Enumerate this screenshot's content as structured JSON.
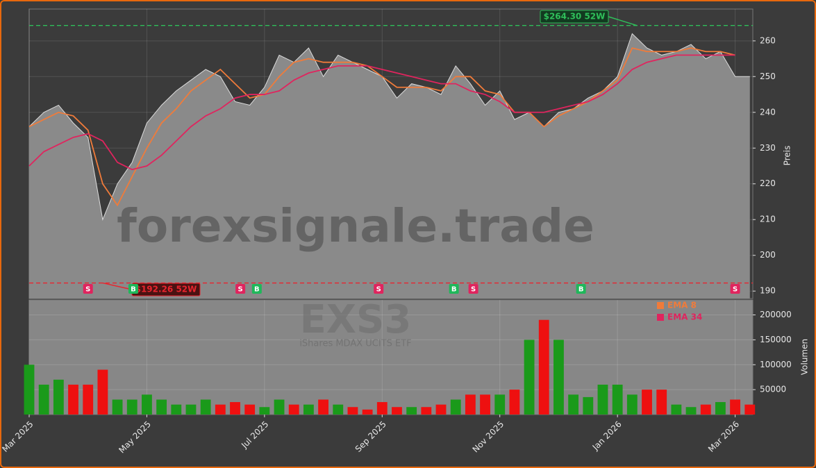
{
  "chart_data": [
    {
      "type": "line",
      "watermark": "forexsignale.trade",
      "symbol": "EXS3",
      "subtitle": "iShares MDAX UCITS ETF",
      "ylabel": "Preis",
      "x": [
        0,
        0.25,
        0.5,
        0.75,
        1,
        1.25,
        1.5,
        1.75,
        2,
        2.25,
        2.5,
        2.75,
        3,
        3.25,
        3.5,
        3.75,
        4,
        4.25,
        4.5,
        4.75,
        5,
        5.25,
        5.5,
        5.75,
        6,
        6.25,
        6.5,
        6.75,
        7,
        7.25,
        7.5,
        7.75,
        8,
        8.25,
        8.5,
        8.75,
        9,
        9.25,
        9.5,
        9.75,
        10,
        10.25,
        10.5,
        10.75,
        11,
        11.25,
        11.5,
        11.75,
        12,
        12.25
      ],
      "xlim": [
        0,
        12.3
      ],
      "ylim": [
        187.9,
        268.9
      ],
      "yticks": [
        190,
        200,
        210,
        220,
        230,
        240,
        250,
        260
      ],
      "grid": true,
      "area_color": "#8a8a8a",
      "series": [
        {
          "color": "#dddddd",
          "values": [
            236,
            240,
            242,
            237,
            233,
            210,
            220,
            226,
            237,
            242,
            246,
            249,
            252,
            250,
            243,
            242,
            247,
            256,
            254,
            258,
            250,
            256,
            254,
            252,
            250,
            244,
            248,
            247,
            245,
            253,
            248,
            242,
            246,
            238,
            240,
            236,
            240,
            241,
            244,
            246,
            250,
            262,
            258,
            256,
            257,
            259,
            255,
            257,
            250,
            250
          ]
        },
        {
          "name": "EMA 8",
          "color": "#f07b3a",
          "values": [
            236,
            238,
            240,
            239,
            235,
            220,
            214,
            222,
            230,
            237,
            241,
            246,
            249,
            252,
            248,
            244,
            245,
            250,
            254,
            255,
            254,
            254,
            254,
            253,
            250,
            247,
            247,
            247,
            246,
            250,
            250,
            246,
            245,
            240,
            240,
            236,
            239,
            241,
            243,
            246,
            249,
            258,
            257,
            257,
            257,
            258,
            257,
            257,
            256,
            null
          ]
        },
        {
          "name": "EMA 34",
          "color": "#e0245e",
          "values": [
            225,
            229,
            231,
            233,
            234,
            232,
            226,
            224,
            225,
            228,
            232,
            236,
            239,
            241,
            244,
            245,
            245,
            246,
            249,
            251,
            252,
            253,
            253,
            253,
            252,
            251,
            250,
            249,
            248,
            248,
            246,
            245,
            243,
            240,
            240,
            240,
            241,
            242,
            243,
            245,
            248,
            252,
            254,
            255,
            256,
            256,
            256,
            256,
            256,
            null
          ]
        }
      ],
      "high": {
        "value": 264.3,
        "label": "$264.30 52W",
        "color": "#2fbf5a"
      },
      "low": {
        "value": 192.26,
        "label": "$192.26 52W",
        "color": "#e8242e"
      },
      "signals": [
        {
          "x": 1.0,
          "label": "S",
          "color": "#e0245e"
        },
        {
          "x": 1.77,
          "label": "B",
          "color": "#1fb85a"
        },
        {
          "x": 3.59,
          "label": "S",
          "color": "#e0245e"
        },
        {
          "x": 3.87,
          "label": "B",
          "color": "#1fb85a"
        },
        {
          "x": 5.94,
          "label": "S",
          "color": "#e0245e"
        },
        {
          "x": 7.22,
          "label": "B",
          "color": "#1fb85a"
        },
        {
          "x": 7.55,
          "label": "S",
          "color": "#e0245e"
        },
        {
          "x": 9.38,
          "label": "B",
          "color": "#1fb85a"
        },
        {
          "x": 12.0,
          "label": "S",
          "color": "#e0245e"
        }
      ]
    },
    {
      "type": "bar",
      "ylabel": "Volumen",
      "ylim": [
        0,
        230000
      ],
      "yticks": [
        50000,
        100000,
        150000,
        200000
      ],
      "xticks": [
        {
          "value": 0,
          "label": "Mar 2025"
        },
        {
          "value": 2,
          "label": "May 2025"
        },
        {
          "value": 4,
          "label": "Jul 2025"
        },
        {
          "value": 6,
          "label": "Sep 2025"
        },
        {
          "value": 8,
          "label": "Nov 2025"
        },
        {
          "value": 10,
          "label": "Jan 2026"
        },
        {
          "value": 12,
          "label": "Mar 2026"
        }
      ],
      "values": [
        100000,
        60000,
        70000,
        60000,
        60000,
        90000,
        30000,
        30000,
        40000,
        30000,
        20000,
        20000,
        30000,
        20000,
        25000,
        20000,
        15000,
        30000,
        20000,
        20000,
        30000,
        20000,
        15000,
        10000,
        25000,
        15000,
        15000,
        15000,
        20000,
        30000,
        40000,
        40000,
        40000,
        50000,
        150000,
        190000,
        150000,
        40000,
        35000,
        60000,
        60000,
        40000,
        50000,
        50000,
        20000,
        15000,
        20000,
        25000,
        30000,
        20000
      ],
      "colors": [
        "#1a9a1a",
        "#1a9a1a",
        "#1a9a1a",
        "#ee1010",
        "#ee1010",
        "#ee1010",
        "#1a9a1a",
        "#1a9a1a",
        "#1a9a1a",
        "#1a9a1a",
        "#1a9a1a",
        "#1a9a1a",
        "#1a9a1a",
        "#ee1010",
        "#ee1010",
        "#ee1010",
        "#1a9a1a",
        "#1a9a1a",
        "#ee1010",
        "#1a9a1a",
        "#ee1010",
        "#1a9a1a",
        "#ee1010",
        "#ee1010",
        "#ee1010",
        "#ee1010",
        "#1a9a1a",
        "#ee1010",
        "#ee1010",
        "#1a9a1a",
        "#ee1010",
        "#ee1010",
        "#1a9a1a",
        "#ee1010",
        "#1a9a1a",
        "#ee1010",
        "#1a9a1a",
        "#1a9a1a",
        "#1a9a1a",
        "#1a9a1a",
        "#1a9a1a",
        "#1a9a1a",
        "#ee1010",
        "#ee1010",
        "#1a9a1a",
        "#1a9a1a",
        "#ee1010",
        "#1a9a1a",
        "#ee1010",
        "#ee1010"
      ]
    }
  ]
}
